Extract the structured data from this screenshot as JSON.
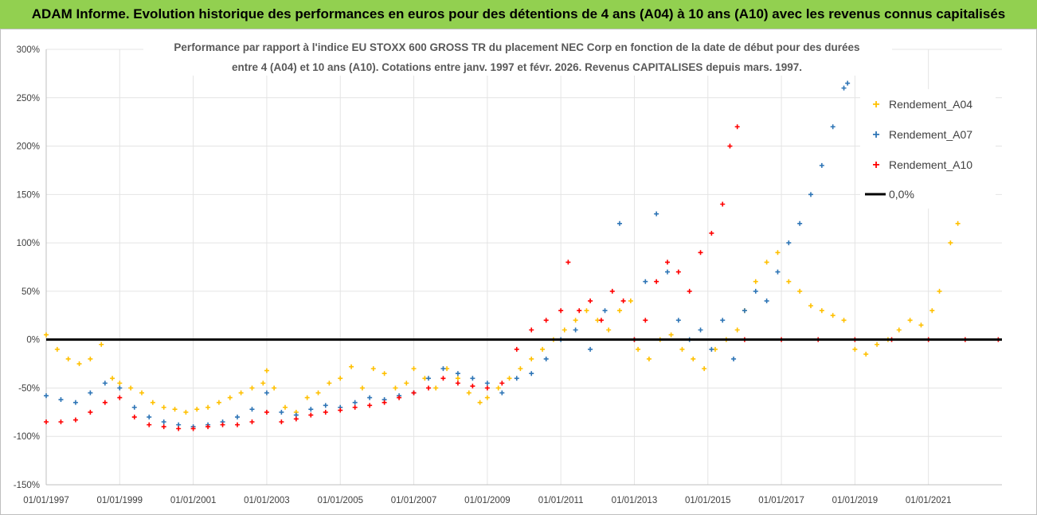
{
  "header": {
    "title": "ADAM Informe. Evolution historique des performances en euros pour des détentions de 4 ans (A04) à 10 ans (A10) avec les revenus connus capitalisés"
  },
  "chart_data": {
    "type": "scatter",
    "title": "",
    "subtitle_line1": "Performance par rapport à l'indice EU STOXX 600 GROSS TR  du placement NEC Corp en fonction de la date de début pour des durées",
    "subtitle_line2": "entre 4 (A04) et 10 ans (A10). Cotations entre janv. 1997 et févr. 2026. Revenus CAPITALISES depuis mars. 1997.",
    "xlabel": "",
    "ylabel": "",
    "xlim": [
      1997.0,
      2023.0
    ],
    "ylim": [
      -150,
      300
    ],
    "y_ticks": [
      "-150%",
      "-100%",
      "-50%",
      "0%",
      "50%",
      "100%",
      "150%",
      "200%",
      "250%",
      "300%"
    ],
    "x_ticks": [
      "01/01/1997",
      "01/01/1999",
      "01/01/2001",
      "01/01/2003",
      "01/01/2005",
      "01/01/2007",
      "01/01/2009",
      "01/01/2011",
      "01/01/2013",
      "01/01/2015",
      "01/01/2017",
      "01/01/2019",
      "01/01/2021"
    ],
    "x_tick_years": [
      1997,
      1999,
      2001,
      2003,
      2005,
      2007,
      2009,
      2011,
      2013,
      2015,
      2017,
      2019,
      2021
    ],
    "legend_position": "right",
    "series": [
      {
        "name": "Rendement_A04",
        "color": "#ffc000",
        "marker": "+",
        "x": [
          1997.0,
          1997.3,
          1997.6,
          1997.9,
          1998.2,
          1998.5,
          1998.8,
          1999.0,
          1999.3,
          1999.6,
          1999.9,
          2000.2,
          2000.5,
          2000.8,
          2001.1,
          2001.4,
          2001.7,
          2002.0,
          2002.3,
          2002.6,
          2002.9,
          2003.0,
          2003.2,
          2003.5,
          2003.8,
          2004.1,
          2004.4,
          2004.7,
          2005.0,
          2005.3,
          2005.6,
          2005.9,
          2006.2,
          2006.5,
          2006.8,
          2007.0,
          2007.3,
          2007.6,
          2007.9,
          2008.2,
          2008.5,
          2008.8,
          2009.0,
          2009.3,
          2009.6,
          2009.9,
          2010.2,
          2010.5,
          2010.8,
          2011.1,
          2011.4,
          2011.7,
          2012.0,
          2012.3,
          2012.6,
          2012.9,
          2013.1,
          2013.4,
          2013.7,
          2014.0,
          2014.3,
          2014.6,
          2014.9,
          2015.2,
          2015.5,
          2015.8,
          2016.0,
          2016.3,
          2016.6,
          2016.9,
          2017.2,
          2017.5,
          2017.8,
          2018.1,
          2018.4,
          2018.7,
          2019.0,
          2019.3,
          2019.6,
          2019.9,
          2020.2,
          2020.5,
          2020.8,
          2021.1,
          2021.3,
          2021.6,
          2021.8
        ],
        "values": [
          5,
          -10,
          -20,
          -25,
          -20,
          -5,
          -40,
          -45,
          -50,
          -55,
          -65,
          -70,
          -72,
          -75,
          -72,
          -70,
          -65,
          -60,
          -55,
          -50,
          -45,
          -32,
          -50,
          -70,
          -75,
          -60,
          -55,
          -45,
          -40,
          -28,
          -50,
          -30,
          -35,
          -50,
          -45,
          -30,
          -40,
          -50,
          -30,
          -40,
          -55,
          -65,
          -60,
          -50,
          -40,
          -30,
          -20,
          -10,
          0,
          10,
          20,
          30,
          20,
          10,
          30,
          40,
          -10,
          -20,
          0,
          5,
          -10,
          -20,
          -30,
          -10,
          0,
          10,
          30,
          60,
          80,
          90,
          60,
          50,
          35,
          30,
          25,
          20,
          -10,
          -15,
          -5,
          0,
          10,
          20,
          15,
          30,
          50,
          100,
          120
        ]
      },
      {
        "name": "Rendement_A07",
        "color": "#2e75b6",
        "marker": "+",
        "x": [
          1997.0,
          1997.4,
          1997.8,
          1998.2,
          1998.6,
          1999.0,
          1999.4,
          1999.8,
          2000.2,
          2000.6,
          2001.0,
          2001.4,
          2001.8,
          2002.2,
          2002.6,
          2003.0,
          2003.4,
          2003.8,
          2004.2,
          2004.6,
          2005.0,
          2005.4,
          2005.8,
          2006.2,
          2006.6,
          2007.0,
          2007.4,
          2007.8,
          2008.2,
          2008.6,
          2009.0,
          2009.4,
          2009.8,
          2010.2,
          2010.6,
          2011.0,
          2011.4,
          2011.8,
          2012.2,
          2012.6,
          2013.0,
          2013.3,
          2013.6,
          2013.9,
          2014.2,
          2014.5,
          2014.8,
          2015.1,
          2015.4,
          2015.7,
          2016.0,
          2016.3,
          2016.6,
          2016.9,
          2017.2,
          2017.5,
          2017.8,
          2018.1,
          2018.4,
          2018.7,
          2018.8
        ],
        "values": [
          -58,
          -62,
          -65,
          -55,
          -45,
          -50,
          -70,
          -80,
          -85,
          -88,
          -90,
          -88,
          -85,
          -80,
          -72,
          -55,
          -75,
          -78,
          -72,
          -68,
          -70,
          -65,
          -60,
          -62,
          -58,
          -55,
          -40,
          -30,
          -35,
          -40,
          -45,
          -55,
          -40,
          -35,
          -20,
          0,
          10,
          -10,
          30,
          120,
          0,
          60,
          130,
          70,
          20,
          0,
          10,
          -10,
          20,
          -20,
          30,
          50,
          40,
          70,
          100,
          120,
          150,
          180,
          220,
          260,
          265
        ]
      },
      {
        "name": "Rendement_A10",
        "color": "#ff0000",
        "marker": "+",
        "x": [
          1997.0,
          1997.4,
          1997.8,
          1998.2,
          1998.6,
          1999.0,
          1999.4,
          1999.8,
          2000.2,
          2000.6,
          2001.0,
          2001.4,
          2001.8,
          2002.2,
          2002.6,
          2003.0,
          2003.4,
          2003.8,
          2004.2,
          2004.6,
          2005.0,
          2005.4,
          2005.8,
          2006.2,
          2006.6,
          2007.0,
          2007.4,
          2007.8,
          2008.2,
          2008.6,
          2009.0,
          2009.4,
          2009.8,
          2010.2,
          2010.6,
          2011.0,
          2011.2,
          2011.5,
          2011.8,
          2012.1,
          2012.4,
          2012.7,
          2013.0,
          2013.3,
          2013.6,
          2013.9,
          2014.2,
          2014.5,
          2014.8,
          2015.1,
          2015.4,
          2015.6,
          2015.8,
          2016.0,
          2017.0,
          2018.0,
          2019.0,
          2020.0,
          2021.0,
          2022.0,
          2022.9
        ],
        "values": [
          -85,
          -85,
          -83,
          -75,
          -65,
          -60,
          -80,
          -88,
          -90,
          -92,
          -92,
          -90,
          -88,
          -88,
          -85,
          -75,
          -85,
          -82,
          -78,
          -75,
          -73,
          -70,
          -68,
          -65,
          -60,
          -55,
          -50,
          -40,
          -45,
          -48,
          -50,
          -45,
          -10,
          10,
          20,
          30,
          80,
          30,
          40,
          20,
          50,
          40,
          0,
          20,
          60,
          80,
          70,
          50,
          90,
          110,
          140,
          200,
          220,
          0,
          0,
          0,
          0,
          0,
          0,
          0,
          0
        ]
      },
      {
        "name": "0,0%",
        "color": "#000000",
        "marker": "line",
        "x": [
          1997.0,
          2023.0
        ],
        "values": [
          0,
          0
        ]
      }
    ]
  }
}
